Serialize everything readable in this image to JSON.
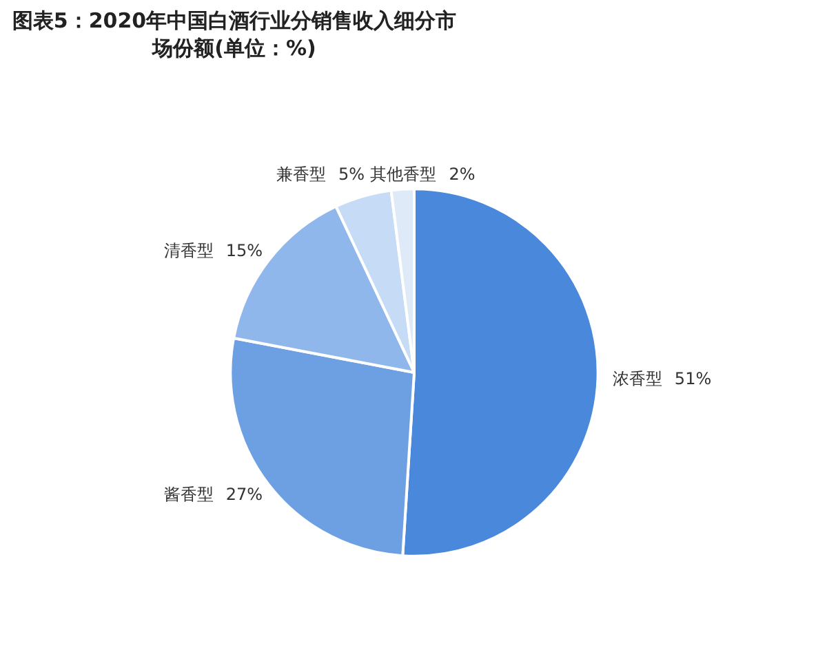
{
  "chart_data": {
    "type": "pie",
    "title": "图表5：2020年中国白酒行业分销售收入细分市场份额(单位：%)",
    "categories": [
      "浓香型",
      "酱香型",
      "清香型",
      "兼香型",
      "其他香型"
    ],
    "values": [
      51,
      27,
      15,
      5,
      2
    ],
    "value_labels": [
      "51%",
      "27%",
      "15%",
      "5%",
      "2%"
    ],
    "colors": [
      "#4a88dc",
      "#6d9fe3",
      "#90b7ec",
      "#c6dcf6",
      "#dfeaf8"
    ]
  }
}
